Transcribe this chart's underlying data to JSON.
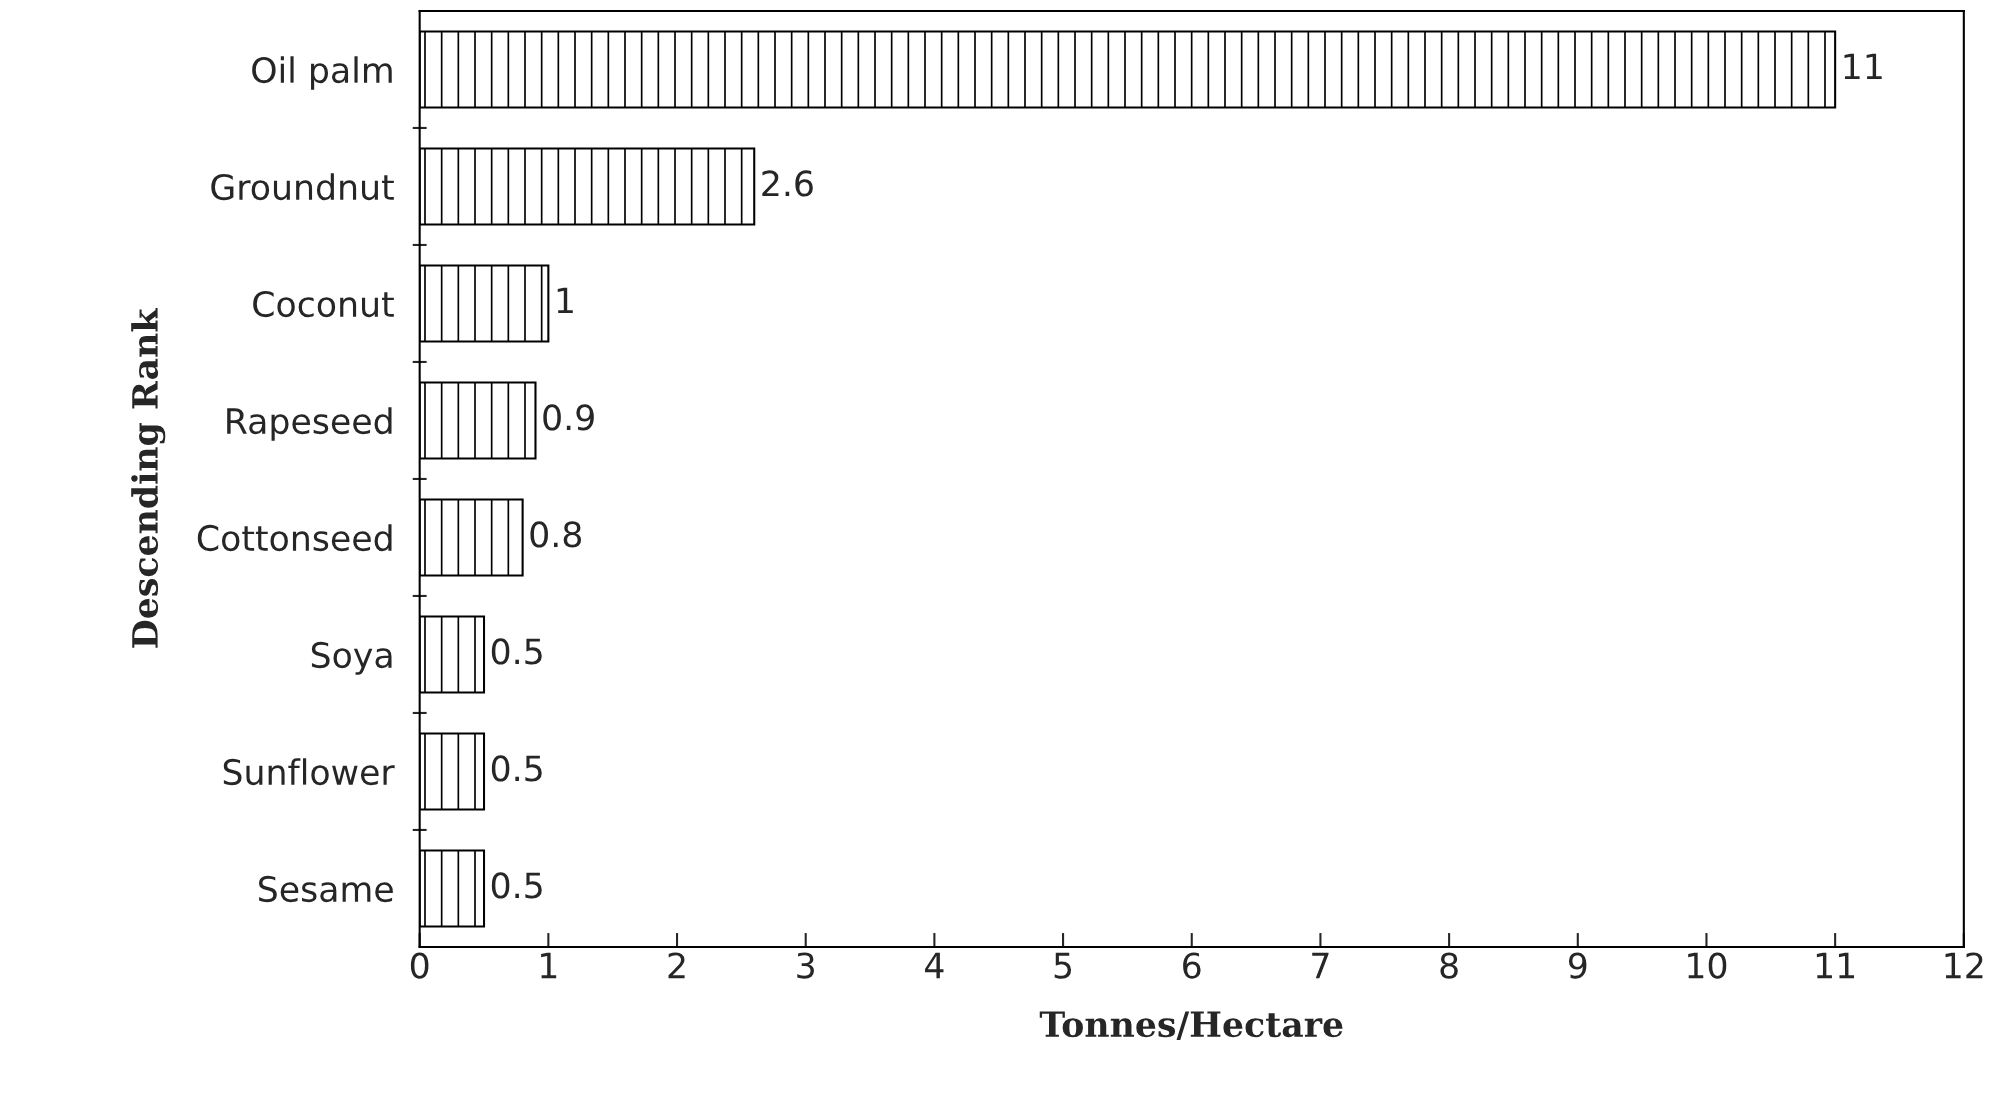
{
  "chart_data": {
    "type": "bar",
    "orientation": "horizontal",
    "xlabel": "Tonnes/Hectare",
    "ylabel": "Descending Rank",
    "categories": [
      "Oil palm",
      "Groundnut",
      "Coconut",
      "Rapeseed",
      "Cottonseed",
      "Soya",
      "Sunflower",
      "Sesame"
    ],
    "values": [
      11,
      2.6,
      1,
      0.9,
      0.8,
      0.5,
      0.5,
      0.5
    ],
    "color": "#000000",
    "xlim": [
      0,
      12
    ],
    "xticks": [
      0,
      1,
      2,
      3,
      4,
      5,
      6,
      7,
      8,
      9,
      10,
      11,
      12
    ],
    "grid": false,
    "data_labels": true
  }
}
